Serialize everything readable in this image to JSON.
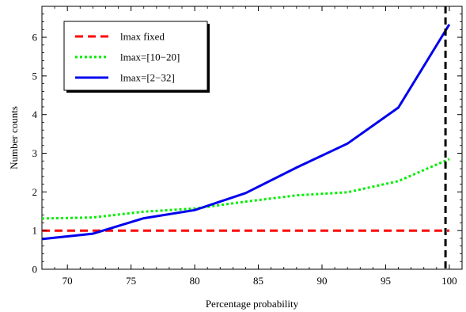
{
  "chart_data": {
    "type": "line",
    "title": "",
    "xlabel": "Percentage probability",
    "ylabel": "Number counts",
    "xlim": [
      68,
      101
    ],
    "ylim": [
      0,
      6.8
    ],
    "xticks": [
      70,
      75,
      80,
      85,
      90,
      95,
      100
    ],
    "yticks": [
      0,
      1,
      2,
      3,
      4,
      5,
      6
    ],
    "grid": false,
    "legend_position": "top-left",
    "vertical_reference_line": {
      "x": 99.7,
      "style": "dashed",
      "color": "#000000"
    },
    "series": [
      {
        "name": "lmax fixed",
        "style": "dashed",
        "color": "#ff0000",
        "x": [
          68,
          72,
          76,
          80,
          84,
          88,
          92,
          96,
          100
        ],
        "y": [
          1,
          1,
          1,
          1,
          1,
          1,
          1,
          1,
          1
        ]
      },
      {
        "name": "lmax=[10−20]",
        "style": "dotted",
        "color": "#00ee00",
        "x": [
          68,
          72,
          76,
          80,
          84,
          88,
          92,
          96,
          100
        ],
        "y": [
          1.31,
          1.34,
          1.49,
          1.57,
          1.75,
          1.91,
          1.99,
          2.28,
          2.85
        ]
      },
      {
        "name": "lmax=[2−32]",
        "style": "solid",
        "color": "#0000ee",
        "x": [
          68,
          72,
          76,
          80,
          84,
          88,
          92,
          96,
          100
        ],
        "y": [
          0.78,
          0.92,
          1.32,
          1.53,
          1.97,
          2.63,
          3.25,
          4.18,
          6.33
        ]
      }
    ]
  }
}
